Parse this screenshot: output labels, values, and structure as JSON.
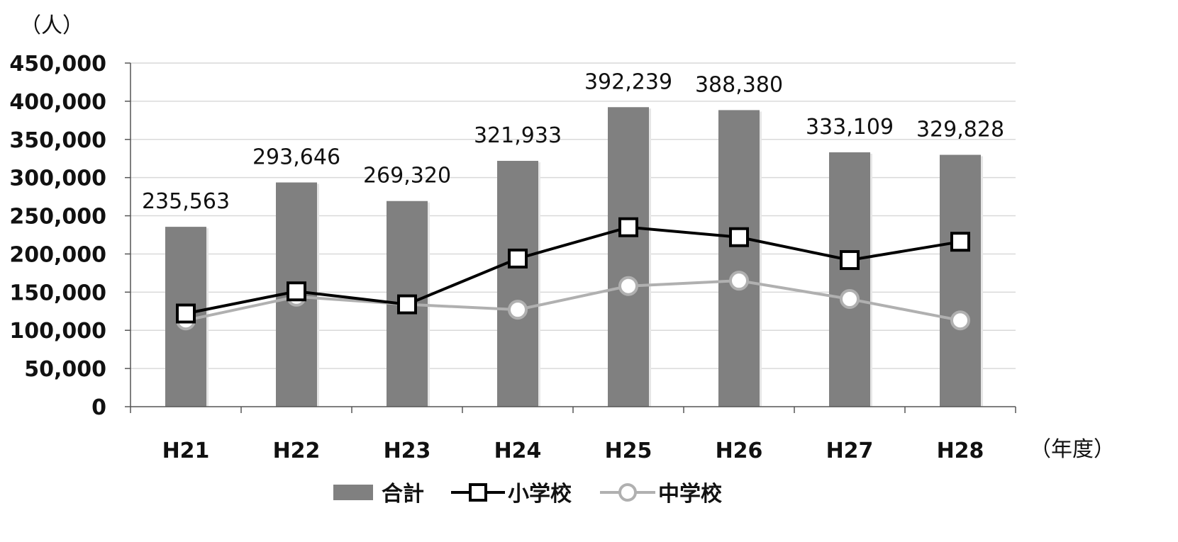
{
  "chart_data": {
    "type": "bar",
    "y_unit_label": "（人）",
    "x_unit_label": "（年度）",
    "categories": [
      "H21",
      "H22",
      "H23",
      "H24",
      "H25",
      "H26",
      "H27",
      "H28"
    ],
    "ylim": [
      0,
      450000
    ],
    "yticks": [
      0,
      50000,
      100000,
      150000,
      200000,
      250000,
      300000,
      350000,
      400000,
      450000
    ],
    "ytick_labels": [
      "0",
      "50,000",
      "100,000",
      "150,000",
      "200,000",
      "250,000",
      "300,000",
      "350,000",
      "400,000",
      "450,000"
    ],
    "grid": true,
    "legend_position": "bottom",
    "series": [
      {
        "name": "合計",
        "kind": "bar",
        "color": "#808080",
        "values": [
          235563,
          293646,
          269320,
          321933,
          392239,
          388380,
          333109,
          329828
        ],
        "labels": [
          "235,563",
          "293,646",
          "269,320",
          "321,933",
          "392,239",
          "388,380",
          "333,109",
          "329,828"
        ]
      },
      {
        "name": "小学校",
        "kind": "line",
        "marker": "square",
        "color": "#000000",
        "values": [
          122000,
          151000,
          134000,
          194000,
          235000,
          222000,
          192000,
          216000
        ]
      },
      {
        "name": "中学校",
        "kind": "line",
        "marker": "circle",
        "color": "#b0b0b0",
        "values": [
          113000,
          144000,
          134000,
          127000,
          158000,
          165000,
          141000,
          113000
        ]
      }
    ]
  }
}
